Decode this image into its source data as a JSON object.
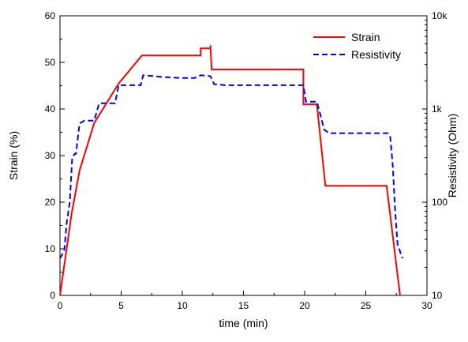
{
  "chart_data": {
    "type": "line",
    "xlabel": "time (min)",
    "ylabel": "Strain (%)",
    "y2label": "Resistivity (Ohm)",
    "xlim": [
      0,
      30
    ],
    "ylim": [
      0,
      60
    ],
    "y2lim": [
      10,
      10000
    ],
    "y2scale": "log",
    "grid": false,
    "legend_position": "top-right",
    "x_ticks": [
      0,
      5,
      10,
      15,
      20,
      25,
      30
    ],
    "x_tick_labels": [
      "0",
      "5",
      "10",
      "15",
      "20",
      "25",
      "30"
    ],
    "y_ticks": [
      0,
      10,
      20,
      30,
      40,
      50,
      60
    ],
    "y_tick_labels": [
      "0",
      "10",
      "20",
      "30",
      "40",
      "50",
      "60"
    ],
    "y2_ticks": [
      10,
      100,
      1000,
      10000
    ],
    "y2_tick_labels": [
      "10",
      "100",
      "1k",
      "10k"
    ],
    "series": [
      {
        "name": "Strain",
        "axis": "left",
        "color": "#ff0000",
        "style": "solid",
        "x": [
          0.0,
          0.65,
          0.65,
          0.95,
          0.95,
          1.6,
          1.6,
          2.8,
          2.8,
          4.8,
          4.8,
          6.7,
          6.7,
          11.5,
          11.5,
          12.3,
          12.3,
          12.4,
          12.4,
          19.9,
          19.9,
          21.0,
          21.0,
          21.7,
          21.7,
          26.7,
          26.7,
          27.8
        ],
        "y": [
          0.0,
          12.0,
          12.0,
          17.5,
          17.5,
          26.8,
          26.8,
          37.0,
          37.0,
          45.5,
          45.5,
          51.5,
          51.5,
          51.5,
          53.0,
          53.0,
          53.7,
          48.5,
          48.5,
          48.5,
          41.0,
          41.0,
          41.0,
          23.5,
          23.5,
          23.5,
          23.5,
          0.0
        ]
      },
      {
        "name": "Resistivity",
        "axis": "right",
        "color": "#0000ff",
        "style": "dashed",
        "x": [
          0.0,
          0.35,
          0.55,
          0.8,
          1.0,
          1.2,
          1.3,
          1.6,
          2.0,
          2.8,
          3.2,
          4.5,
          4.8,
          6.0,
          6.6,
          6.8,
          8.5,
          10.0,
          11.0,
          11.5,
          12.3,
          12.6,
          13.5,
          19.8,
          19.9,
          20.1,
          21.0,
          21.3,
          21.6,
          22.0,
          26.8,
          27.0,
          27.2,
          27.4,
          27.6,
          28.0
        ],
        "y": [
          25,
          30,
          60,
          100,
          300,
          330,
          330,
          700,
          750,
          750,
          1150,
          1150,
          1800,
          1800,
          1800,
          2300,
          2200,
          2150,
          2150,
          2300,
          2250,
          1850,
          1800,
          1800,
          1800,
          1200,
          1200,
          850,
          600,
          550,
          550,
          500,
          250,
          80,
          35,
          25
        ]
      }
    ]
  }
}
